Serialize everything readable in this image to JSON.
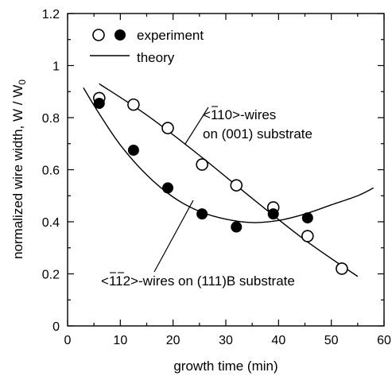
{
  "chart_data": {
    "type": "scatter",
    "title": "",
    "xlabel": "growth time (min)",
    "ylabel": "normalized wire width,  W / W",
    "ylabel_subscript": "0",
    "xlim": [
      0,
      60
    ],
    "ylim": [
      0,
      1.2
    ],
    "x_ticks": [
      "0",
      "10",
      "20",
      "30",
      "40",
      "50",
      "60"
    ],
    "y_ticks": [
      "0",
      "0.2",
      "0.4",
      "0.6",
      "0.8",
      "1",
      "1.2"
    ],
    "x_tick_values": [
      0,
      10,
      20,
      30,
      40,
      50,
      60
    ],
    "y_tick_values": [
      0,
      0.2,
      0.4,
      0.6,
      0.8,
      1.0,
      1.2
    ],
    "grid": false,
    "legend_position": "top-left",
    "legend": {
      "experiment_label": "experiment",
      "theory_label": "theory"
    },
    "annotations": {
      "open_label_line1_prefix": "<",
      "open_label_line1_overbar1": "1",
      "open_label_line1_rest": "10>-wires",
      "open_label_line2": "on (001) substrate",
      "filled_label_prefix": "<",
      "filled_label_overbar1": "1",
      "filled_label_overbar2": "1",
      "filled_label_digit": "2",
      "filled_label_rest": ">-wires on (111)B substrate"
    },
    "series": [
      {
        "marker": "open-circle",
        "points": [
          [
            6,
            0.875
          ],
          [
            12.5,
            0.85
          ],
          [
            19,
            0.76
          ],
          [
            25.5,
            0.62
          ],
          [
            32,
            0.54
          ],
          [
            39,
            0.455
          ],
          [
            45.5,
            0.345
          ],
          [
            52,
            0.22
          ]
        ]
      },
      {
        "marker": "filled-circle",
        "points": [
          [
            6,
            0.855
          ],
          [
            12.5,
            0.675
          ],
          [
            19,
            0.53
          ],
          [
            25.5,
            0.43
          ],
          [
            32,
            0.38
          ],
          [
            39,
            0.43
          ],
          [
            45.5,
            0.415
          ]
        ]
      }
    ],
    "theory_curves": [
      {
        "for": "open-circle",
        "points": [
          [
            6,
            0.93
          ],
          [
            15,
            0.81
          ],
          [
            25,
            0.655
          ],
          [
            35,
            0.49
          ],
          [
            45,
            0.33
          ],
          [
            55,
            0.19
          ]
        ]
      },
      {
        "for": "filled-circle",
        "points": [
          [
            3,
            0.915
          ],
          [
            6,
            0.815
          ],
          [
            10,
            0.695
          ],
          [
            15,
            0.58
          ],
          [
            20,
            0.495
          ],
          [
            25,
            0.44
          ],
          [
            30,
            0.41
          ],
          [
            35,
            0.397
          ],
          [
            40,
            0.405
          ],
          [
            45,
            0.43
          ],
          [
            50,
            0.465
          ],
          [
            55,
            0.5
          ],
          [
            58,
            0.53
          ]
        ]
      }
    ],
    "colors": {
      "axis": "#000000",
      "open_fill": "#ffffff",
      "filled_fill": "#000000"
    }
  }
}
